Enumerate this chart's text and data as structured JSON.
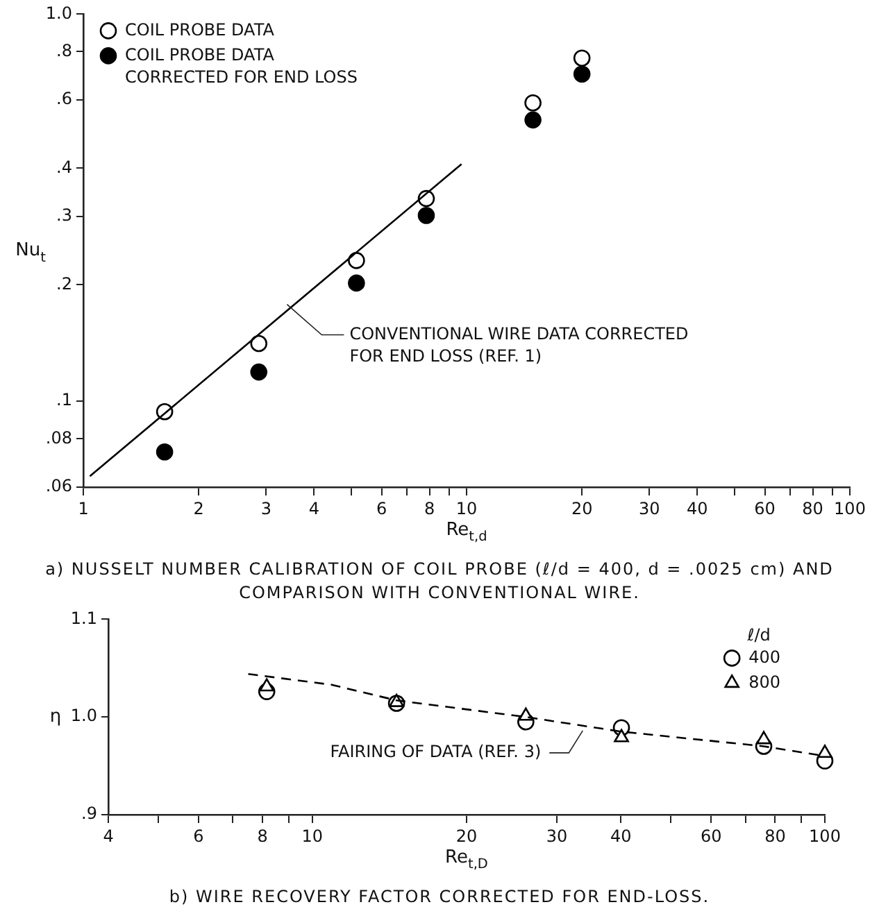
{
  "chart_data": [
    {
      "type": "scatter",
      "title": "a) NUSSELT NUMBER CALIBRATION OF COIL PROBE (ℓ/d = 400, d = .0025 cm) AND COMPARISON WITH CONVENTIONAL WIRE.",
      "xlabel": "Re$_{t,d}$",
      "ylabel": "Nu$_{t}$",
      "log": "xy",
      "xlim": [
        1,
        100
      ],
      "ylim": [
        0.06,
        1.0
      ],
      "xticks": [
        1,
        2,
        3,
        4,
        {
          "value": 5,
          "label": null
        },
        6,
        {
          "value": 7,
          "label": null
        },
        8,
        {
          "value": 9,
          "label": null
        },
        10,
        20,
        30,
        40,
        {
          "value": 50,
          "label": null
        },
        60,
        {
          "value": 70,
          "label": null
        },
        80,
        {
          "value": 90,
          "label": null
        },
        100
      ],
      "yticks": [
        {
          "value": 0.06,
          "label": ".06"
        },
        {
          "value": 0.08,
          "label": ".08"
        },
        {
          "value": 0.1,
          "label": ".1"
        },
        {
          "value": 0.2,
          "label": ".2"
        },
        {
          "value": 0.3,
          "label": ".3"
        },
        {
          "value": 0.4,
          "label": ".4"
        },
        {
          "value": 0.6,
          "label": ".6"
        },
        {
          "value": 0.8,
          "label": ".8"
        },
        {
          "value": 1.0,
          "label": "1.0"
        }
      ],
      "x": [
        1.63,
        2.87,
        5.16,
        7.85,
        14.9,
        20.0
      ],
      "series": [
        {
          "name": "COIL PROBE DATA",
          "color": "#ffffff",
          "marker": "circle",
          "values": [
            0.094,
            0.141,
            0.231,
            0.334,
            0.59,
            0.77
          ]
        },
        {
          "name": "COIL PROBE DATA CORRECTED FOR END LOSS",
          "color": "#000000",
          "marker": "circle",
          "values": [
            0.074,
            0.119,
            0.202,
            0.302,
            0.533,
            0.7
          ]
        },
        {
          "type": "line",
          "color": "#000000",
          "marker": "none",
          "line_style": "solid",
          "x": [
            1.04,
            9.7
          ],
          "values": [
            0.064,
            0.41
          ]
        }
      ],
      "annotations": [
        {
          "text": "CONVENTIONAL WIRE DATA CORRECTED FOR END LOSS (REF. 1)",
          "x": 3.4,
          "y": 0.178
        }
      ],
      "legend": "top left",
      "grid": false
    },
    {
      "type": "scatter",
      "title": "b) WIRE RECOVERY FACTOR CORRECTED FOR END-LOSS.",
      "xlabel": "Re$_{t,D}$",
      "ylabel": "η",
      "log": "x",
      "xlim": [
        4,
        100
      ],
      "ylim": [
        0.9,
        1.1
      ],
      "xticks": [
        4,
        {
          "value": 5,
          "label": null
        },
        6,
        {
          "value": 7,
          "label": null
        },
        8,
        {
          "value": 9,
          "label": null
        },
        10,
        20,
        30,
        40,
        {
          "value": 50,
          "label": null
        },
        60,
        {
          "value": 70,
          "label": null
        },
        80,
        {
          "value": 90,
          "label": null
        },
        100
      ],
      "yticks": [
        {
          "value": 0.9,
          "label": ".9"
        },
        {
          "value": 1.0,
          "label": "1.0"
        },
        {
          "value": 1.1,
          "label": "1.1"
        }
      ],
      "x": [
        8.15,
        14.6,
        26.1,
        40.1,
        76,
        100
      ],
      "legend_title": "ℓ/d",
      "series": [
        {
          "name": "400",
          "color": "#ffffff",
          "marker": "circle",
          "values": [
            1.026,
            1.014,
            0.995,
            0.989,
            0.97,
            0.955
          ]
        },
        {
          "name": "800",
          "color": "#ffffff",
          "marker": "triangle",
          "values": [
            1.031,
            1.015,
            1.001,
            0.979,
            0.977,
            0.963
          ]
        },
        {
          "type": "line",
          "color": "#000000",
          "marker": "none",
          "line_style": "dashed",
          "x": [
            7.5,
            10.9,
            14.6,
            26.1,
            40.1,
            76,
            100
          ],
          "values": [
            1.044,
            1.033,
            1.017,
            1.0,
            0.985,
            0.97,
            0.96
          ]
        }
      ],
      "annotations": [
        {
          "text": "FAIRING OF DATA (REF. 3)",
          "x": 33.7,
          "y": 0.986
        }
      ],
      "legend": "top right",
      "grid": false
    }
  ]
}
